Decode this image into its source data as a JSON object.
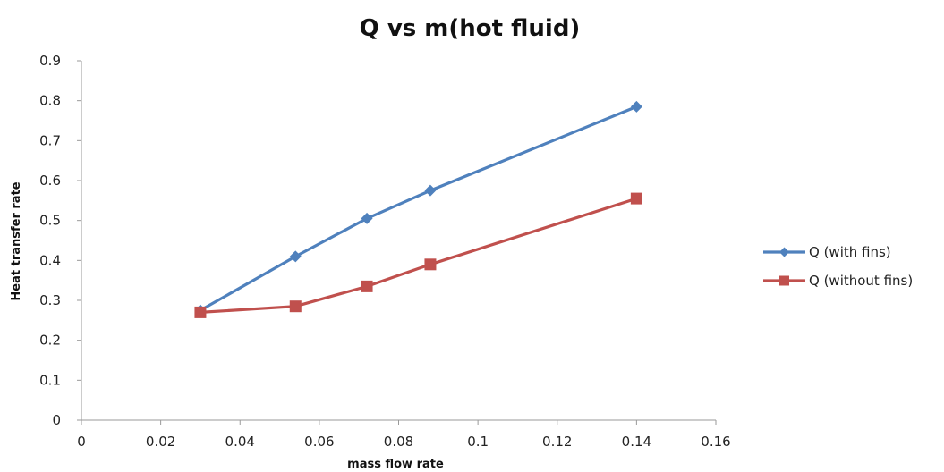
{
  "chart_data": {
    "type": "line",
    "title": "Q vs m(hot fluid)",
    "xlabel": "mass flow rate",
    "ylabel": "Heat transfer rate",
    "xlim": [
      0,
      0.16
    ],
    "ylim": [
      0,
      0.9
    ],
    "x_ticks": [
      "0",
      "0.02",
      "0.04",
      "0.06",
      "0.08",
      "0.1",
      "0.12",
      "0.14",
      "0.16"
    ],
    "y_ticks": [
      "0",
      "0.1",
      "0.2",
      "0.3",
      "0.4",
      "0.5",
      "0.6",
      "0.7",
      "0.8",
      "0.9"
    ],
    "grid": false,
    "legend_position": "right",
    "series": [
      {
        "name": "Q (with fins)",
        "color": "#4F81BD",
        "marker": "diamond",
        "x": [
          0.03,
          0.054,
          0.072,
          0.088,
          0.14
        ],
        "y": [
          0.275,
          0.41,
          0.505,
          0.575,
          0.785
        ]
      },
      {
        "name": "Q (without fins)",
        "color": "#C0504D",
        "marker": "square",
        "x": [
          0.03,
          0.054,
          0.072,
          0.088,
          0.14
        ],
        "y": [
          0.27,
          0.285,
          0.335,
          0.39,
          0.555
        ]
      }
    ]
  }
}
